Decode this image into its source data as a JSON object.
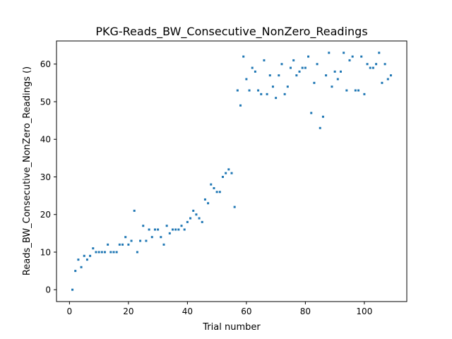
{
  "chart_data": {
    "type": "scatter",
    "title": "PKG-Reads_BW_Consecutive_NonZero_Readings",
    "xlabel": "Trial number",
    "ylabel": "Reads_BW_Consecutive_NonZero_Readings ()",
    "xlim": [
      -4.4,
      114.4
    ],
    "ylim": [
      -3.15,
      66.15
    ],
    "xticks": [
      0,
      20,
      40,
      60,
      80,
      100
    ],
    "yticks": [
      0,
      10,
      20,
      30,
      40,
      50,
      60
    ],
    "marker_color": "#1f77b4",
    "grid": false,
    "legend": "none",
    "points": [
      [
        1,
        0
      ],
      [
        2,
        5
      ],
      [
        3,
        8
      ],
      [
        4,
        6
      ],
      [
        5,
        9
      ],
      [
        6,
        8
      ],
      [
        7,
        9
      ],
      [
        8,
        11
      ],
      [
        9,
        10
      ],
      [
        10,
        10
      ],
      [
        11,
        10
      ],
      [
        12,
        10
      ],
      [
        13,
        12
      ],
      [
        14,
        10
      ],
      [
        15,
        10
      ],
      [
        16,
        10
      ],
      [
        17,
        12
      ],
      [
        18,
        12
      ],
      [
        19,
        14
      ],
      [
        20,
        12
      ],
      [
        21,
        13
      ],
      [
        22,
        21
      ],
      [
        23,
        10
      ],
      [
        24,
        13
      ],
      [
        25,
        17
      ],
      [
        26,
        13
      ],
      [
        27,
        16
      ],
      [
        28,
        14
      ],
      [
        29,
        16
      ],
      [
        30,
        16
      ],
      [
        31,
        14
      ],
      [
        32,
        12
      ],
      [
        33,
        17
      ],
      [
        34,
        15
      ],
      [
        35,
        16
      ],
      [
        36,
        16
      ],
      [
        37,
        16
      ],
      [
        38,
        17
      ],
      [
        39,
        16
      ],
      [
        40,
        18
      ],
      [
        41,
        19
      ],
      [
        42,
        21
      ],
      [
        43,
        20
      ],
      [
        44,
        19
      ],
      [
        45,
        18
      ],
      [
        46,
        24
      ],
      [
        47,
        23
      ],
      [
        48,
        28
      ],
      [
        49,
        27
      ],
      [
        50,
        26
      ],
      [
        51,
        26
      ],
      [
        52,
        30
      ],
      [
        53,
        31
      ],
      [
        54,
        32
      ],
      [
        55,
        31
      ],
      [
        56,
        22
      ],
      [
        57,
        53
      ],
      [
        58,
        49
      ],
      [
        59,
        62
      ],
      [
        60,
        56
      ],
      [
        61,
        53
      ],
      [
        62,
        59
      ],
      [
        63,
        58
      ],
      [
        64,
        53
      ],
      [
        65,
        52
      ],
      [
        66,
        61
      ],
      [
        67,
        52
      ],
      [
        68,
        57
      ],
      [
        69,
        54
      ],
      [
        70,
        51
      ],
      [
        71,
        57
      ],
      [
        72,
        60
      ],
      [
        73,
        52
      ],
      [
        74,
        54
      ],
      [
        75,
        59
      ],
      [
        76,
        61
      ],
      [
        77,
        57
      ],
      [
        78,
        58
      ],
      [
        79,
        59
      ],
      [
        80,
        59
      ],
      [
        81,
        62
      ],
      [
        82,
        47
      ],
      [
        83,
        55
      ],
      [
        84,
        60
      ],
      [
        85,
        43
      ],
      [
        86,
        46
      ],
      [
        87,
        57
      ],
      [
        88,
        63
      ],
      [
        89,
        54
      ],
      [
        90,
        58
      ],
      [
        91,
        56
      ],
      [
        92,
        58
      ],
      [
        93,
        63
      ],
      [
        94,
        53
      ],
      [
        95,
        61
      ],
      [
        96,
        62
      ],
      [
        97,
        53
      ],
      [
        98,
        53
      ],
      [
        99,
        62
      ],
      [
        100,
        52
      ],
      [
        101,
        60
      ],
      [
        102,
        59
      ],
      [
        103,
        59
      ],
      [
        104,
        60
      ],
      [
        105,
        63
      ],
      [
        106,
        55
      ],
      [
        107,
        60
      ],
      [
        108,
        56
      ],
      [
        109,
        57
      ]
    ]
  }
}
